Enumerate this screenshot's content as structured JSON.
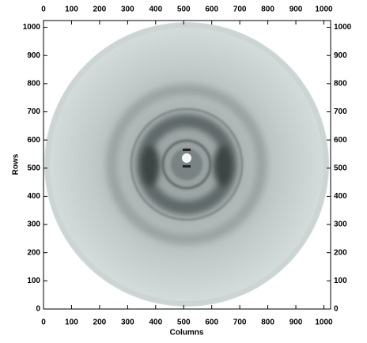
{
  "chart_data": {
    "type": "image",
    "x_label": "Columns",
    "y_label": "Rows",
    "xlim": [
      0,
      1024
    ],
    "ylim": [
      0,
      1024
    ],
    "xticks": [
      0,
      100,
      200,
      300,
      400,
      500,
      600,
      700,
      800,
      900,
      1000
    ],
    "yticks": [
      0,
      100,
      200,
      300,
      400,
      500,
      600,
      700,
      800,
      900,
      1000
    ]
  }
}
